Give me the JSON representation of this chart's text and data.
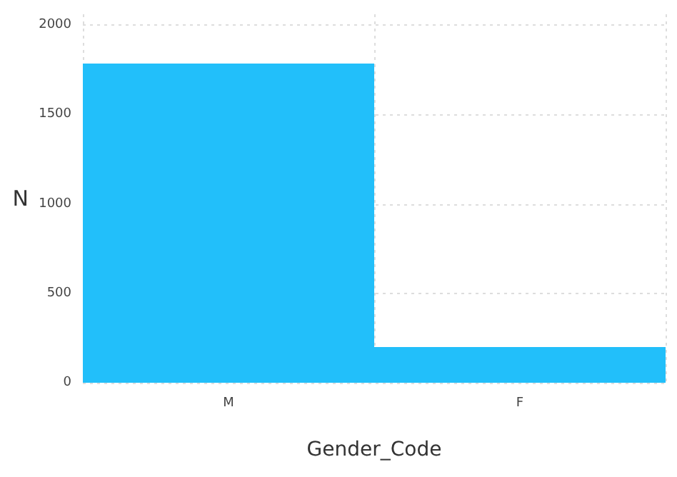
{
  "chart_data": {
    "type": "bar",
    "xlabel": "Gender_Code",
    "ylabel": "N",
    "categories": [
      "M",
      "F"
    ],
    "values": [
      1785,
      200
    ],
    "color": "#22bffa",
    "ylim": [
      0,
      2060
    ],
    "yticks": [
      0,
      500,
      1000,
      1500,
      2000
    ],
    "grid": true
  }
}
